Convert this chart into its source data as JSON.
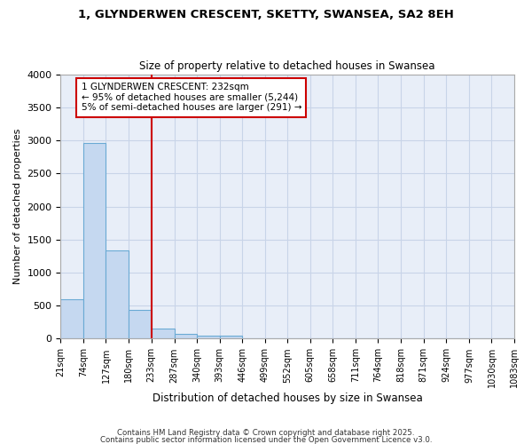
{
  "title1": "1, GLYNDERWEN CRESCENT, SKETTY, SWANSEA, SA2 8EH",
  "title2": "Size of property relative to detached houses in Swansea",
  "xlabel": "Distribution of detached houses by size in Swansea",
  "ylabel": "Number of detached properties",
  "bin_edges": [
    21,
    74,
    127,
    180,
    233,
    287,
    340,
    393,
    446,
    499,
    552,
    605,
    658,
    711,
    764,
    818,
    871,
    924,
    977,
    1030,
    1083
  ],
  "bar_heights": [
    600,
    2960,
    1340,
    430,
    160,
    75,
    50,
    40,
    0,
    0,
    0,
    0,
    0,
    0,
    0,
    0,
    0,
    0,
    0,
    0
  ],
  "bar_color": "#c5d8f0",
  "bar_edge_color": "#6aaad4",
  "plot_bg_color": "#e8eef8",
  "figure_bg_color": "#ffffff",
  "grid_color": "#c8d4e8",
  "vline_x": 233,
  "vline_color": "#cc0000",
  "annotation_text": "1 GLYNDERWEN CRESCENT: 232sqm\n← 95% of detached houses are smaller (5,244)\n5% of semi-detached houses are larger (291) →",
  "annotation_box_color": "white",
  "annotation_box_edge": "#cc0000",
  "ylim": [
    0,
    4000
  ],
  "yticks": [
    0,
    500,
    1000,
    1500,
    2000,
    2500,
    3000,
    3500,
    4000
  ],
  "footer1": "Contains HM Land Registry data © Crown copyright and database right 2025.",
  "footer2": "Contains public sector information licensed under the Open Government Licence v3.0."
}
